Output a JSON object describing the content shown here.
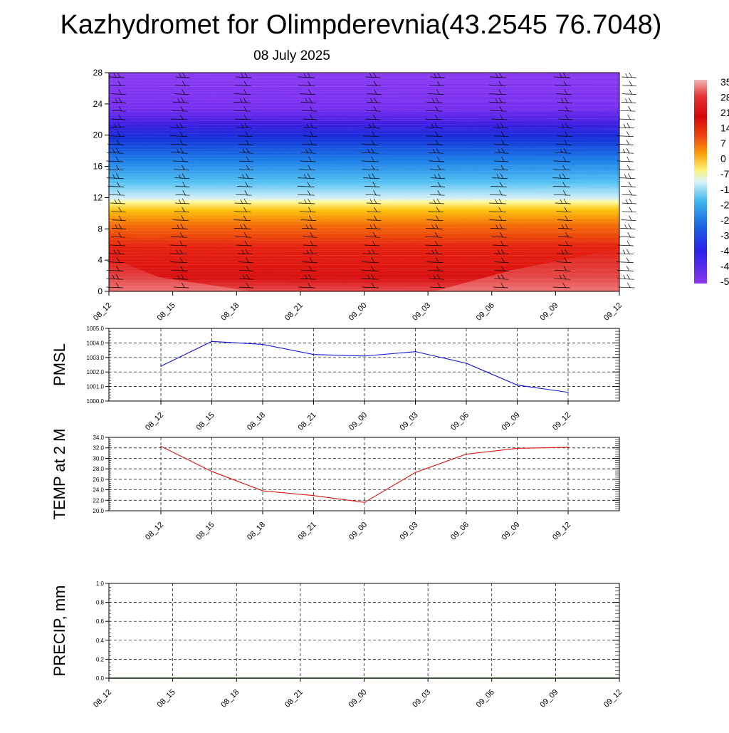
{
  "title": "Kazhydromet for Olimpderevnia(43.2545 76.7048)",
  "subtitle": "08 July 2025",
  "time_labels": [
    "08_12",
    "08_15",
    "08_18",
    "08_21",
    "09_00",
    "09_03",
    "09_06",
    "09_09",
    "09_12"
  ],
  "colorbar_labels": [
    "35",
    "28",
    "21",
    "14",
    "7",
    "0",
    "-7",
    "-1",
    "-2",
    "-2",
    "-3",
    "-4",
    "-4",
    "-5"
  ],
  "colors": {
    "pmsl_line": "#1515e0",
    "temp_line": "#e01515",
    "precip_line": "#0a6e0a"
  },
  "chart_data": [
    {
      "type": "heatmap",
      "name": "temperature-profile",
      "x": [
        "08_12",
        "08_15",
        "08_18",
        "08_21",
        "09_00",
        "09_03",
        "09_06",
        "09_09",
        "09_12"
      ],
      "y_ticks": [
        0,
        4,
        8,
        12,
        16,
        20,
        24,
        28
      ],
      "ylim": [
        0,
        28
      ],
      "has_wind_barbs": true
    },
    {
      "type": "line",
      "name": "pmsl",
      "ylabel": "PMSL",
      "x": [
        "08_12",
        "08_15",
        "08_18",
        "08_21",
        "09_00",
        "09_03",
        "09_06",
        "09_09",
        "09_12"
      ],
      "values": [
        1002.4,
        1004.1,
        1003.9,
        1003.2,
        1003.1,
        1003.4,
        1002.6,
        1001.1,
        1000.6
      ],
      "ylim": [
        1000.0,
        1005.0
      ],
      "y_ticks": [
        "1000.0",
        "1001.0",
        "1002.0",
        "1003.0",
        "1004.0",
        "1005.0"
      ],
      "grid": true
    },
    {
      "type": "line",
      "name": "temp-2m",
      "ylabel": "TEMP at 2 M",
      "x": [
        "08_12",
        "08_15",
        "08_18",
        "08_21",
        "09_00",
        "09_03",
        "09_06",
        "09_09",
        "09_12"
      ],
      "values": [
        32.3,
        27.5,
        23.8,
        22.9,
        21.6,
        27.3,
        30.8,
        31.9,
        32.1
      ],
      "ylim": [
        20.0,
        34.0
      ],
      "y_ticks": [
        "20.0",
        "22.0",
        "24.0",
        "26.0",
        "28.0",
        "30.0",
        "32.0",
        "34.0"
      ],
      "grid": true
    },
    {
      "type": "line",
      "name": "precip",
      "ylabel": "PRECIP, mm",
      "x": [
        "08_12",
        "08_15",
        "08_18",
        "08_21",
        "09_00",
        "09_03",
        "09_06",
        "09_09",
        "09_12"
      ],
      "values": [
        0,
        0,
        0,
        0,
        0,
        0,
        0,
        0,
        0
      ],
      "ylim": [
        0.0,
        1.0
      ],
      "y_ticks": [
        "0.0",
        "0.2",
        "0.4",
        "0.6",
        "0.8",
        "1.0"
      ],
      "grid": true
    }
  ]
}
